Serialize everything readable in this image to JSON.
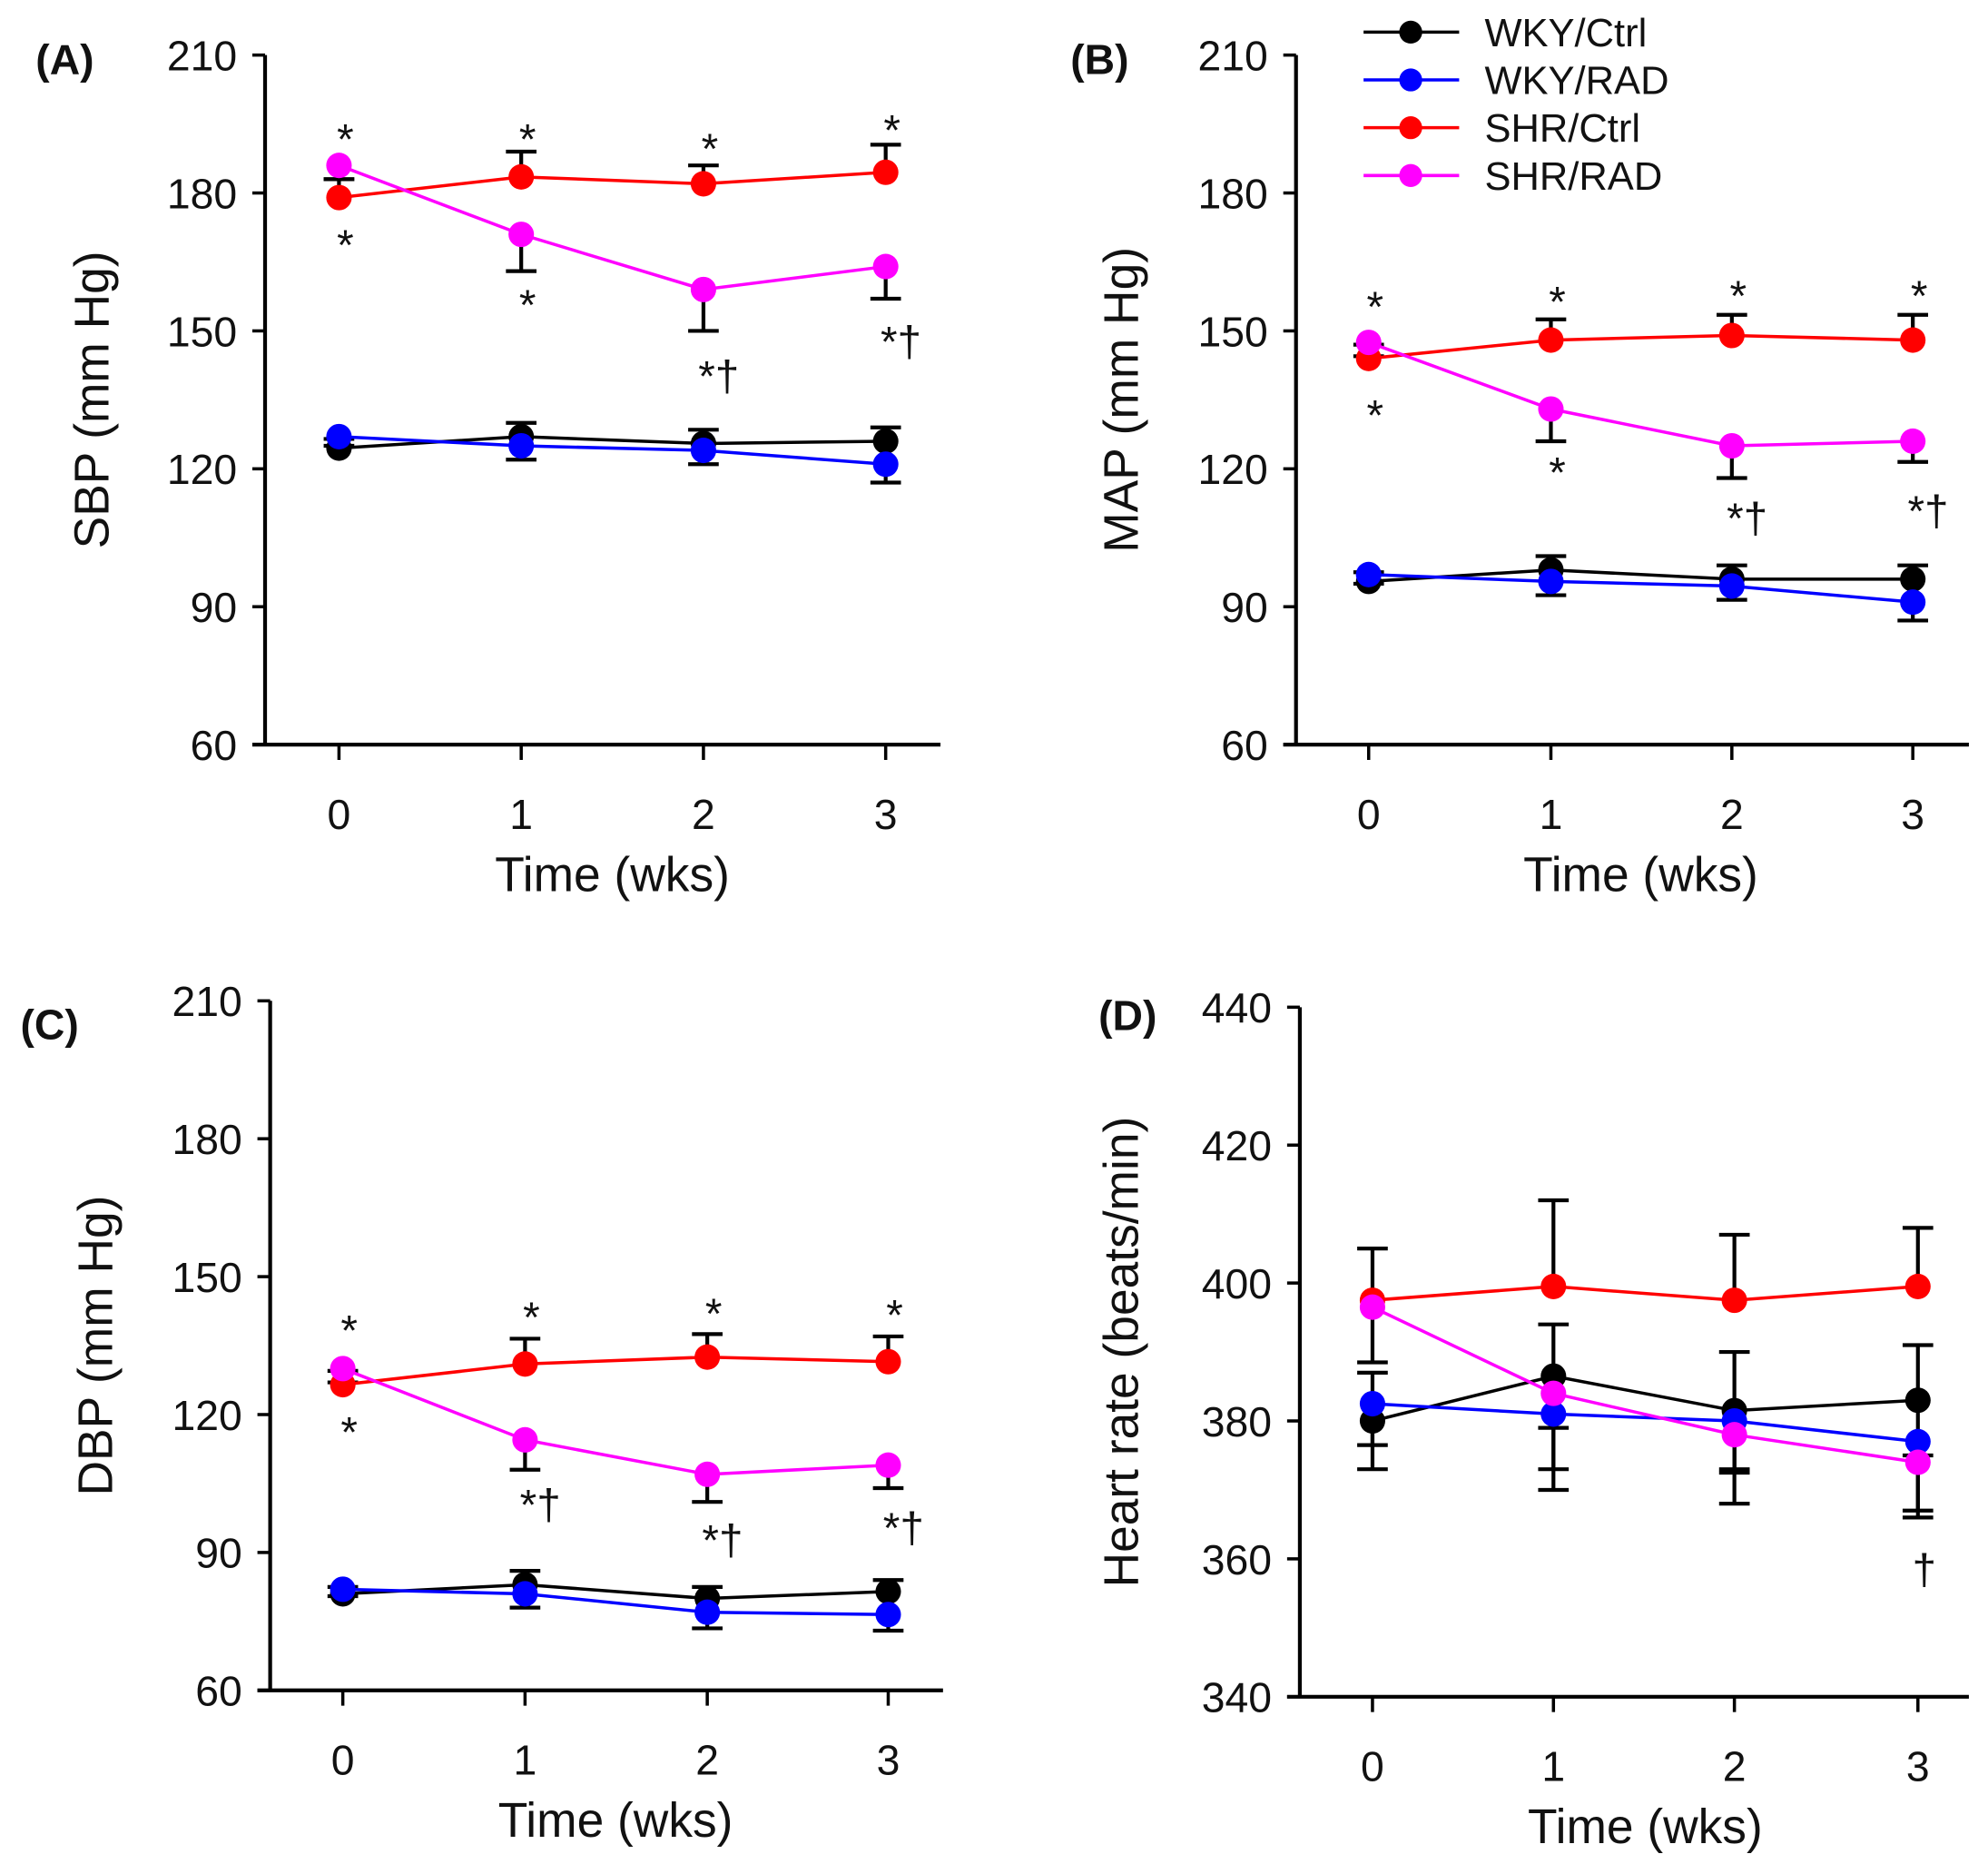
{
  "chart_data": [
    {
      "type": "line",
      "panel_label": "(A)",
      "xlabel": "Time (wks)",
      "ylabel": "SBP (mm Hg)",
      "x": [
        0,
        1,
        2,
        3
      ],
      "ylim": [
        60,
        210
      ],
      "yticks": [
        60,
        90,
        120,
        150,
        180,
        210
      ],
      "series": [
        {
          "name": "WKY/Ctrl",
          "color": "#000000",
          "values": [
            124.5,
            127,
            125.5,
            126
          ],
          "err": [
            2,
            3,
            3,
            3
          ],
          "err_dir": "up"
        },
        {
          "name": "WKY/RAD",
          "color": "#0000ff",
          "values": [
            127,
            125,
            124,
            121
          ],
          "err": [
            2,
            3,
            3,
            4
          ],
          "err_dir": "down"
        },
        {
          "name": "SHR/Ctrl",
          "color": "#ff0000",
          "values": [
            179,
            183.5,
            182,
            184.5
          ],
          "err": [
            4,
            5.5,
            4,
            6
          ],
          "err_dir": "up"
        },
        {
          "name": "SHR/RAD",
          "color": "#ff00ff",
          "values": [
            186,
            171,
            159,
            164
          ],
          "err": [
            3,
            8,
            9,
            7
          ],
          "err_dir": "down"
        }
      ],
      "annotations": [
        {
          "x": 0,
          "y": 194,
          "text": "*"
        },
        {
          "x": 0,
          "y": 171,
          "text": "*"
        },
        {
          "x": 1,
          "y": 194,
          "text": "*"
        },
        {
          "x": 1,
          "y": 158,
          "text": "*"
        },
        {
          "x": 2,
          "y": 192,
          "text": "*"
        },
        {
          "x": 2,
          "y": 142.5,
          "text": "*†"
        },
        {
          "x": 3,
          "y": 196,
          "text": "*"
        },
        {
          "x": 3,
          "y": 150,
          "text": "*†"
        }
      ]
    },
    {
      "type": "line",
      "panel_label": "(B)",
      "xlabel": "Time (wks)",
      "ylabel": "MAP (mm Hg)",
      "x": [
        0,
        1,
        2,
        3
      ],
      "ylim": [
        60,
        210
      ],
      "yticks": [
        60,
        90,
        120,
        150,
        180,
        210
      ],
      "series": [
        {
          "name": "WKY/Ctrl",
          "color": "#000000",
          "values": [
            95.5,
            98,
            96,
            96
          ],
          "err": [
            2,
            3,
            3,
            3
          ],
          "err_dir": "up"
        },
        {
          "name": "WKY/RAD",
          "color": "#0000ff",
          "values": [
            97,
            95.5,
            94.5,
            91
          ],
          "err": [
            2,
            3,
            3,
            4
          ],
          "err_dir": "down"
        },
        {
          "name": "SHR/Ctrl",
          "color": "#ff0000",
          "values": [
            144,
            148,
            149,
            148
          ],
          "err": [
            3,
            4.5,
            4.5,
            5.5
          ],
          "err_dir": "up"
        },
        {
          "name": "SHR/RAD",
          "color": "#ff00ff",
          "values": [
            147.5,
            133,
            125,
            126
          ],
          "err": [
            3,
            7,
            7,
            4.5
          ],
          "err_dir": "down"
        }
      ],
      "annotations": [
        {
          "x": 0,
          "y": 157.6,
          "text": "*"
        },
        {
          "x": 0,
          "y": 134,
          "text": "*"
        },
        {
          "x": 1,
          "y": 158.7,
          "text": "*"
        },
        {
          "x": 1,
          "y": 121.6,
          "text": "*"
        },
        {
          "x": 2,
          "y": 160,
          "text": "*"
        },
        {
          "x": 2,
          "y": 111.6,
          "text": "*†"
        },
        {
          "x": 3,
          "y": 160,
          "text": "*"
        },
        {
          "x": 3,
          "y": 113.2,
          "text": "*†"
        }
      ],
      "legend": {
        "placement": "top-right",
        "entries": [
          "WKY/Ctrl",
          "WKY/RAD",
          "SHR/Ctrl",
          "SHR/RAD"
        ]
      }
    },
    {
      "type": "line",
      "panel_label": "(C)",
      "xlabel": "Time (wks)",
      "ylabel": "DBP (mm Hg)",
      "x": [
        0,
        1,
        2,
        3
      ],
      "ylim": [
        60,
        210
      ],
      "yticks": [
        60,
        90,
        120,
        150,
        180,
        210
      ],
      "series": [
        {
          "name": "WKY/Ctrl",
          "color": "#000000",
          "values": [
            81,
            83,
            80,
            81.5
          ],
          "err": [
            1.5,
            3,
            2.5,
            2.5
          ],
          "err_dir": "up"
        },
        {
          "name": "WKY/RAD",
          "color": "#0000ff",
          "values": [
            82,
            81,
            77,
            76.5
          ],
          "err": [
            1.5,
            3,
            3.5,
            3.5
          ],
          "err_dir": "down"
        },
        {
          "name": "SHR/Ctrl",
          "color": "#ff0000",
          "values": [
            126.5,
            131,
            132.5,
            131.5
          ],
          "err": [
            3,
            5.5,
            5,
            5.5
          ],
          "err_dir": "up"
        },
        {
          "name": "SHR/RAD",
          "color": "#ff00ff",
          "values": [
            130,
            114.5,
            107,
            109
          ],
          "err": [
            3,
            6.5,
            6,
            5
          ],
          "err_dir": "down"
        }
      ],
      "annotations": [
        {
          "x": 0,
          "y": 140.7,
          "text": "*"
        },
        {
          "x": 0,
          "y": 118.5,
          "text": "*"
        },
        {
          "x": 1,
          "y": 143.5,
          "text": "*"
        },
        {
          "x": 1,
          "y": 102.7,
          "text": "*†"
        },
        {
          "x": 2,
          "y": 144.3,
          "text": "*"
        },
        {
          "x": 2,
          "y": 95,
          "text": "*†"
        },
        {
          "x": 3,
          "y": 144,
          "text": "*"
        },
        {
          "x": 3,
          "y": 97.7,
          "text": "*†"
        }
      ]
    },
    {
      "type": "line",
      "panel_label": "(D)",
      "xlabel": "Time (wks)",
      "ylabel": "Heart rate (beats/min)",
      "x": [
        0,
        1,
        2,
        3
      ],
      "ylim": [
        340,
        440
      ],
      "yticks": [
        340,
        360,
        380,
        400,
        420,
        440
      ],
      "series": [
        {
          "name": "WKY/Ctrl",
          "color": "#000000",
          "values": [
            380,
            386.5,
            381.5,
            383
          ],
          "err": [
            7,
            7.5,
            8.5,
            8
          ],
          "err_dir": "both"
        },
        {
          "name": "WKY/RAD",
          "color": "#0000ff",
          "values": [
            382.5,
            381,
            380,
            377
          ],
          "err": [
            6,
            11,
            7.5,
            10
          ],
          "err_dir": "down"
        },
        {
          "name": "SHR/Ctrl",
          "color": "#ff0000",
          "values": [
            397.5,
            399.5,
            397.5,
            399.5
          ],
          "err": [
            7.5,
            12.5,
            9.5,
            8.5
          ],
          "err_dir": "up"
        },
        {
          "name": "SHR/RAD",
          "color": "#ff00ff",
          "values": [
            396.5,
            384,
            378,
            374
          ],
          "err": [
            8,
            11,
            10,
            8
          ],
          "err_dir": "down"
        }
      ],
      "annotations": [
        {
          "x": 3,
          "y": 360,
          "text": "†"
        }
      ]
    }
  ]
}
